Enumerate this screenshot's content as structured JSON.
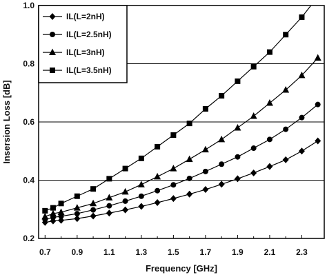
{
  "chart_data": {
    "type": "line",
    "xlabel": "Frequency [GHz]",
    "ylabel": "Insersion Loss [dB]",
    "xlim": [
      0.66,
      2.44
    ],
    "ylim": [
      0.2,
      1.0
    ],
    "x_ticks": [
      "0.7",
      "0.9",
      "1.1",
      "1.3",
      "1.5",
      "1.7",
      "1.9",
      "2.1",
      "2.3"
    ],
    "y_ticks": [
      "0.2",
      "0.4",
      "0.6",
      "0.8",
      "1.0"
    ],
    "grid": "horizontal at 0.4, 0.6, 0.8",
    "legend_position": "top-left",
    "x": [
      0.7,
      0.75,
      0.8,
      0.9,
      1.0,
      1.1,
      1.2,
      1.3,
      1.4,
      1.5,
      1.6,
      1.7,
      1.8,
      1.9,
      2.0,
      2.1,
      2.2,
      2.3,
      2.4
    ],
    "series": [
      {
        "name": "IL(L=2nH)",
        "marker": "diamond",
        "values": [
          0.255,
          0.26,
          0.262,
          0.268,
          0.277,
          0.287,
          0.298,
          0.31,
          0.323,
          0.337,
          0.352,
          0.368,
          0.386,
          0.405,
          0.425,
          0.447,
          0.47,
          0.5,
          0.535
        ]
      },
      {
        "name": "IL(L=2.5nH)",
        "marker": "circle",
        "values": [
          0.265,
          0.272,
          0.276,
          0.285,
          0.298,
          0.312,
          0.328,
          0.345,
          0.364,
          0.384,
          0.406,
          0.43,
          0.455,
          0.48,
          0.51,
          0.54,
          0.575,
          0.615,
          0.66
        ]
      },
      {
        "name": "IL(L=3nH)",
        "marker": "triangle",
        "values": [
          0.275,
          0.285,
          0.29,
          0.305,
          0.32,
          0.34,
          0.36,
          0.385,
          0.412,
          0.44,
          0.472,
          0.505,
          0.54,
          0.58,
          0.62,
          0.665,
          0.71,
          0.76,
          0.82
        ]
      },
      {
        "name": "IL(L=3.5nH)",
        "marker": "square",
        "values": [
          0.295,
          0.305,
          0.32,
          0.345,
          0.37,
          0.405,
          0.44,
          0.475,
          0.515,
          0.555,
          0.595,
          0.645,
          0.69,
          0.74,
          0.79,
          0.84,
          0.9,
          0.96,
          1.03
        ]
      }
    ]
  }
}
